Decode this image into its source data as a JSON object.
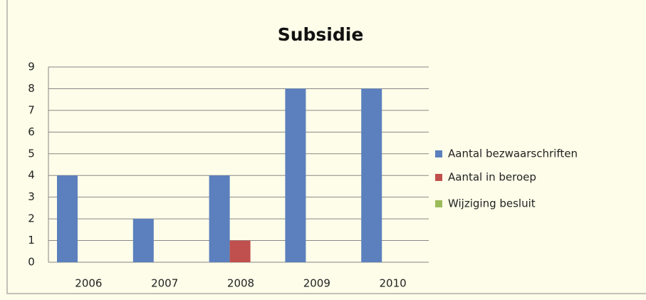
{
  "chart_data": {
    "type": "bar",
    "title": "Subsidie",
    "categories": [
      "2006",
      "2007",
      "2008",
      "2009",
      "2010"
    ],
    "series": [
      {
        "name": "Aantal bezwaarschriften",
        "color": "#5b80bd",
        "values": [
          4,
          2,
          4,
          8,
          8
        ]
      },
      {
        "name": "Aantal in beroep",
        "color": "#c0504d",
        "values": [
          0,
          0,
          1,
          0,
          0
        ]
      },
      {
        "name": "Wijziging besluit",
        "color": "#9bbb59",
        "values": [
          0,
          0,
          0,
          0,
          0
        ]
      }
    ],
    "ylim": [
      0,
      9
    ],
    "yticks": [
      0,
      1,
      2,
      3,
      4,
      5,
      6,
      7,
      8,
      9
    ],
    "grid": true,
    "legend": "right"
  }
}
